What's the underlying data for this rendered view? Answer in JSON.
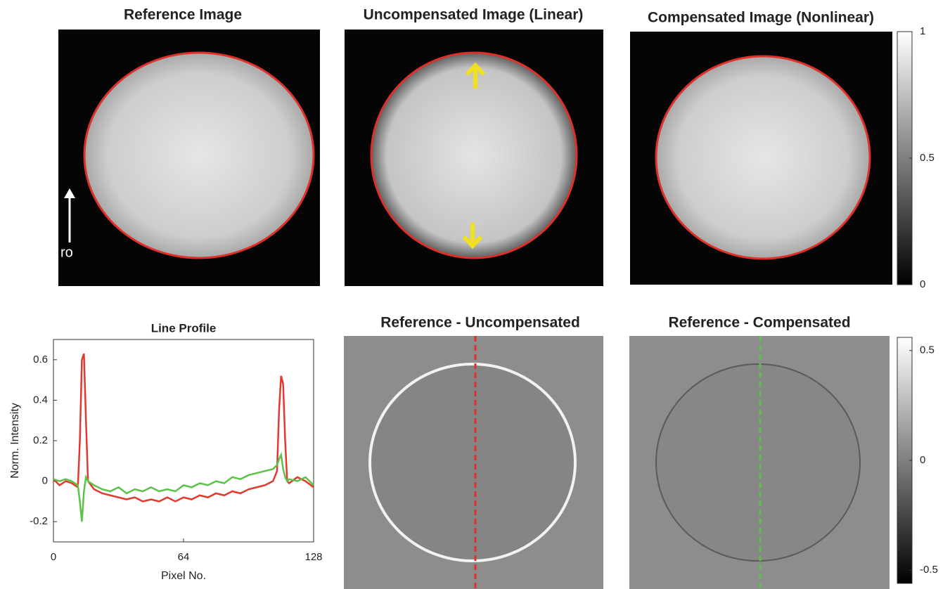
{
  "images": [
    {
      "title": "Reference Image"
    },
    {
      "title": "Uncompensated Image (Linear)"
    },
    {
      "title": "Compensated Image (Nonlinear)"
    },
    {
      "title": "Reference - Uncompensated"
    },
    {
      "title": "Reference - Compensated"
    }
  ],
  "annotation": "ro",
  "chart_data": [
    {
      "type": "line",
      "title": "Line Profile",
      "x_label": "Pixel No.",
      "y_label": "Norm. Intensity",
      "x": [
        0,
        3,
        6,
        9,
        12,
        13,
        14,
        15,
        16,
        17,
        20,
        24,
        28,
        32,
        36,
        40,
        44,
        48,
        52,
        56,
        60,
        64,
        68,
        72,
        76,
        80,
        84,
        88,
        92,
        96,
        100,
        104,
        108,
        110,
        111,
        112,
        113,
        114,
        115,
        116,
        120,
        124,
        128
      ],
      "series": [
        {
          "color": "#e03a2f",
          "values": [
            0.01,
            -0.02,
            0.0,
            -0.01,
            -0.03,
            0.2,
            0.6,
            0.63,
            0.3,
            0.0,
            -0.04,
            -0.06,
            -0.07,
            -0.08,
            -0.09,
            -0.08,
            -0.1,
            -0.09,
            -0.1,
            -0.08,
            -0.1,
            -0.08,
            -0.09,
            -0.07,
            -0.08,
            -0.06,
            -0.07,
            -0.05,
            -0.06,
            -0.04,
            -0.03,
            -0.02,
            0.0,
            0.05,
            0.35,
            0.52,
            0.48,
            0.2,
            0.0,
            -0.01,
            0.02,
            0.0,
            -0.03
          ]
        },
        {
          "color": "#5cc24a",
          "values": [
            0.01,
            0.0,
            0.01,
            0.0,
            -0.02,
            -0.1,
            -0.2,
            -0.05,
            0.02,
            0.0,
            -0.02,
            -0.04,
            -0.05,
            -0.03,
            -0.06,
            -0.04,
            -0.05,
            -0.03,
            -0.05,
            -0.04,
            -0.05,
            -0.02,
            -0.03,
            -0.01,
            -0.02,
            0.0,
            -0.01,
            0.02,
            0.01,
            0.03,
            0.04,
            0.05,
            0.06,
            0.08,
            0.11,
            0.13,
            0.06,
            0.02,
            0.0,
            0.01,
            0.0,
            0.02,
            -0.02
          ]
        }
      ],
      "xlim": [
        0,
        128
      ],
      "xticks": [
        0,
        64,
        128
      ],
      "ylim": [
        -0.3,
        0.7
      ],
      "yticks": [
        -0.2,
        0,
        0.2,
        0.4,
        0.6
      ]
    },
    {
      "type": "colorbar",
      "ylim": [
        0,
        1
      ],
      "yticks": [
        0,
        0.5,
        1
      ]
    },
    {
      "type": "colorbar",
      "ylim": [
        -0.56,
        0.56
      ],
      "yticks": [
        -0.5,
        0,
        0.5
      ]
    }
  ]
}
